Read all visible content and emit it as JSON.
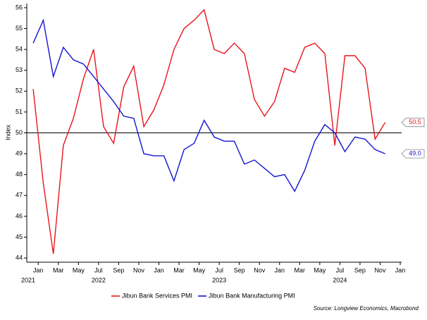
{
  "chart_data": {
    "type": "line",
    "y_label": "Index",
    "x": [
      "2021-12",
      "2022-01",
      "2022-02",
      "2022-03",
      "2022-04",
      "2022-05",
      "2022-06",
      "2022-07",
      "2022-08",
      "2022-09",
      "2022-10",
      "2022-11",
      "2022-12",
      "2023-01",
      "2023-02",
      "2023-03",
      "2023-04",
      "2023-05",
      "2023-06",
      "2023-07",
      "2023-08",
      "2023-09",
      "2023-10",
      "2023-11",
      "2023-12",
      "2024-01",
      "2024-02",
      "2024-03",
      "2024-04",
      "2024-05",
      "2024-06",
      "2024-07",
      "2024-08",
      "2024-09",
      "2024-10",
      "2024-11"
    ],
    "series": [
      {
        "name": "Jibun Bank Services PMI",
        "color": "#e8141c",
        "values": [
          52.1,
          47.6,
          44.2,
          49.4,
          50.7,
          52.6,
          54.0,
          50.3,
          49.5,
          52.2,
          53.2,
          50.3,
          51.1,
          52.3,
          54.0,
          55.0,
          55.4,
          55.9,
          54.0,
          53.8,
          54.3,
          53.8,
          51.6,
          50.8,
          51.5,
          53.1,
          52.9,
          54.1,
          54.3,
          53.8,
          49.4,
          53.7,
          53.7,
          53.1,
          49.7,
          50.5
        ],
        "end_label": "50.5"
      },
      {
        "name": "Jibun Bank Manufacturing PMI",
        "color": "#1414d2",
        "values": [
          54.3,
          55.4,
          52.7,
          54.1,
          53.5,
          53.3,
          52.7,
          52.1,
          51.5,
          50.8,
          50.7,
          49.0,
          48.9,
          48.9,
          47.7,
          49.2,
          49.5,
          50.6,
          49.8,
          49.6,
          49.6,
          48.5,
          48.7,
          48.3,
          47.9,
          48.0,
          47.2,
          48.2,
          49.6,
          50.4,
          50.0,
          49.1,
          49.8,
          49.7,
          49.2,
          49.0
        ],
        "end_label": "49.0"
      }
    ],
    "xlim": [
      "2021-12",
      "2025-01"
    ],
    "xticks": [
      {
        "value": "2022-01",
        "label": "Jan"
      },
      {
        "value": "2022-03",
        "label": "Mar"
      },
      {
        "value": "2022-05",
        "label": "May"
      },
      {
        "value": "2022-07",
        "label": "Jul"
      },
      {
        "value": "2022-09",
        "label": "Sep"
      },
      {
        "value": "2022-11",
        "label": "Nov"
      },
      {
        "value": "2023-01",
        "label": "Jan"
      },
      {
        "value": "2023-03",
        "label": "Mar"
      },
      {
        "value": "2023-05",
        "label": "May"
      },
      {
        "value": "2023-07",
        "label": "Jul"
      },
      {
        "value": "2023-09",
        "label": "Sep"
      },
      {
        "value": "2023-11",
        "label": "Nov"
      },
      {
        "value": "2024-01",
        "label": "Jan"
      },
      {
        "value": "2024-03",
        "label": "Mar"
      },
      {
        "value": "2024-05",
        "label": "May"
      },
      {
        "value": "2024-07",
        "label": "Jul"
      },
      {
        "value": "2024-09",
        "label": "Sep"
      },
      {
        "value": "2024-11",
        "label": "Nov"
      },
      {
        "value": "2025-01",
        "label": "Jan"
      }
    ],
    "year_labels": [
      "2021",
      "2022",
      "2023",
      "2024"
    ],
    "ylim": [
      43.8,
      56.2
    ],
    "yticks": [
      44,
      45,
      46,
      47,
      48,
      49,
      50,
      51,
      52,
      53,
      54,
      55,
      56
    ],
    "reference_line": 50,
    "legend": "bottom",
    "source": "Source: Longview Economics, Macrobond"
  }
}
